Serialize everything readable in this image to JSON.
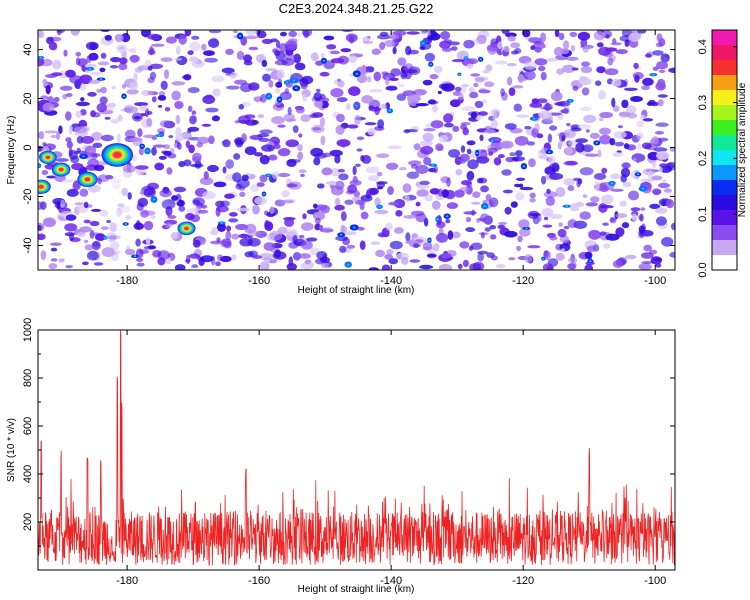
{
  "page_title": "C2E3.2024.348.21.25.G22",
  "colors": {
    "background": "#ffffff",
    "snr_line": "#ee2222",
    "frame": "#000000"
  },
  "chart_data": [
    {
      "type": "heatmap",
      "title": "C2E3.2024.348.21.25.G22",
      "xlabel": "Height of straight line (km)",
      "ylabel": "Frequency (Hz)",
      "xlim": [
        -193.5,
        -97
      ],
      "ylim": [
        -50,
        48
      ],
      "x_ticks": [
        -180,
        -160,
        -140,
        -120,
        -100
      ],
      "y_ticks": [
        -40,
        -20,
        0,
        20,
        40
      ],
      "colorbar": {
        "label": "Normalized spectral amplitude",
        "range": [
          0,
          0.43
        ],
        "ticks": [
          0,
          0.1,
          0.2,
          0.3,
          0.4
        ],
        "colors": [
          "#ffffff",
          "#c8a8f2",
          "#8a4df0",
          "#5a12e8",
          "#2a0ae0",
          "#0a2cf0",
          "#0a98ff",
          "#10e6f2",
          "#10e89a",
          "#3cf020",
          "#a8f51c",
          "#f8f018",
          "#f8a015",
          "#f53030",
          "#ee1866",
          "#f01ab0"
        ]
      },
      "hotspots": [
        {
          "x": -181.5,
          "y": -3,
          "value": 0.42
        },
        {
          "x": -186,
          "y": -13,
          "value": 0.18
        },
        {
          "x": -190,
          "y": -9,
          "value": 0.14
        },
        {
          "x": -193,
          "y": -16,
          "value": 0.15
        },
        {
          "x": -192,
          "y": -4,
          "value": 0.12
        },
        {
          "x": -171,
          "y": -33,
          "value": 0.13
        }
      ]
    },
    {
      "type": "line",
      "xlabel": "Height of straight line (km)",
      "ylabel": "SNR (10 * v/v)",
      "xlim": [
        -193.5,
        -97
      ],
      "ylim": [
        0,
        1000
      ],
      "x_ticks": [
        -180,
        -160,
        -140,
        -120,
        -100
      ],
      "y_ticks": [
        200,
        400,
        600,
        800,
        1000
      ],
      "series": [
        {
          "x_start": -193.5,
          "x_end": -97,
          "baseline_mean": 150,
          "typical_range": [
            20,
            320
          ],
          "peaks": [
            {
              "x": -181,
              "y": 1000
            },
            {
              "x": -181.5,
              "y": 840
            },
            {
              "x": -180.8,
              "y": 700
            },
            {
              "x": -193,
              "y": 560
            },
            {
              "x": -190,
              "y": 500
            },
            {
              "x": -186,
              "y": 480
            },
            {
              "x": -184,
              "y": 460
            },
            {
              "x": -110,
              "y": 520
            },
            {
              "x": -162,
              "y": 430
            }
          ]
        }
      ]
    }
  ]
}
